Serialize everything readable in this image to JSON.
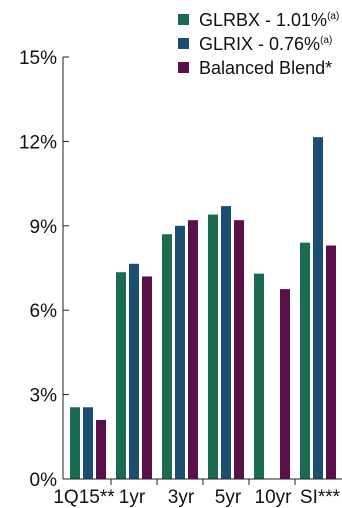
{
  "chart_data": {
    "type": "bar",
    "categories": [
      "1Q15**",
      "1yr",
      "3yr",
      "5yr",
      "10yr",
      "SI***"
    ],
    "series": [
      {
        "name": "GLRBX - 1.01%",
        "superscript": "(a)",
        "color": "#1a6b4f",
        "values": [
          2.55,
          7.35,
          8.7,
          9.4,
          7.3,
          8.4
        ]
      },
      {
        "name": "GLRIX - 0.76%",
        "superscript": "(a)",
        "color": "#1c4e70",
        "values": [
          2.55,
          7.65,
          9.0,
          9.7,
          null,
          12.15
        ]
      },
      {
        "name": "Balanced Blend*",
        "superscript": "",
        "color": "#5a1048",
        "values": [
          2.1,
          7.2,
          9.2,
          9.2,
          6.75,
          8.3
        ]
      }
    ],
    "title": "",
    "xlabel": "",
    "ylabel": "",
    "ylim": [
      0,
      15
    ],
    "yticks": [
      0,
      3,
      6,
      9,
      12,
      15
    ],
    "ytick_labels": [
      "0%",
      "3%",
      "6%",
      "9%",
      "12%",
      "15%"
    ],
    "grid": false,
    "legend": "top-right"
  }
}
